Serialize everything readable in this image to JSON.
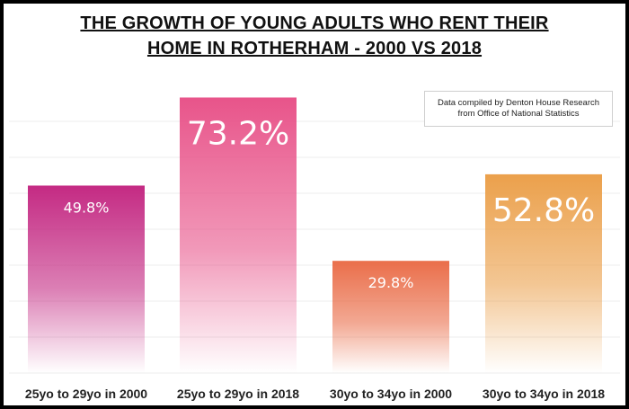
{
  "title_line1": "THE GROWTH OF YOUNG ADULTS WHO RENT THEIR",
  "title_line2": "HOME IN ROTHERHAM - 2000 VS 2018",
  "note_line1": "Data compiled by Denton House Research",
  "note_line2": "from Office of National Statistics",
  "chart_data": {
    "type": "bar",
    "title": "THE GROWTH OF YOUNG ADULTS WHO RENT THEIR HOME IN ROTHERHAM - 2000 VS 2018",
    "categories": [
      "25yo to 29yo in 2000",
      "25yo to 29yo in 2018",
      "30yo to 34yo in 2000",
      "30yo to 34yo in 2018"
    ],
    "values": [
      49.8,
      73.2,
      29.8,
      52.8
    ],
    "value_labels": [
      "49.8%",
      "73.2%",
      "29.8%",
      "52.8%"
    ],
    "colors": [
      "#c42a83",
      "#e8548a",
      "#ea6e4a",
      "#eba04b"
    ],
    "ylim": [
      0,
      80
    ],
    "grid": true,
    "legend": "none"
  }
}
